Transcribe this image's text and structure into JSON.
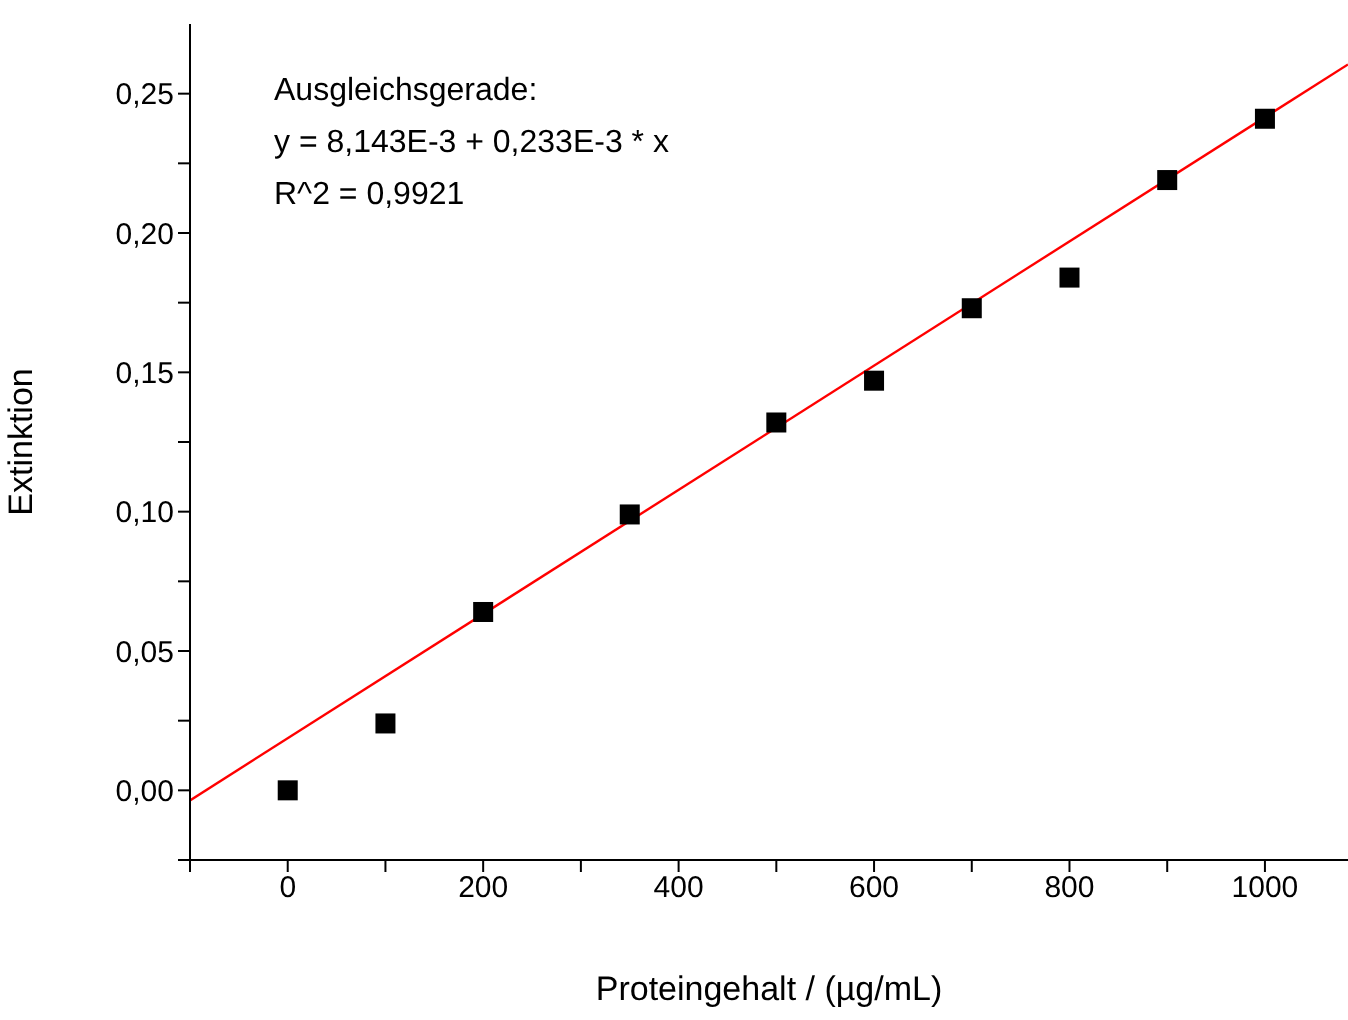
{
  "chart_data": {
    "type": "scatter",
    "xlabel": "Proteingehalt / (µg/mL)",
    "ylabel": "Extinktion",
    "annotations": [
      "Ausgleichsgerade:",
      "y = 8,143E-3 + 0,233E-3 * x",
      "R^2 = 0,9921"
    ],
    "x": [
      0,
      100,
      200,
      350,
      500,
      600,
      700,
      800,
      900,
      1000
    ],
    "series": [
      {
        "color": "#000000",
        "marker": "square",
        "values": [
          0.0,
          0.024,
          0.064,
          0.099,
          0.132,
          0.147,
          0.173,
          0.184,
          0.219,
          0.241
        ]
      },
      {
        "type": "line",
        "color": "#ff0000",
        "marker": "none",
        "line_style": "solid",
        "x": [
          -100,
          1085
        ],
        "values": [
          -0.0036,
          0.2605
        ]
      }
    ],
    "xlim": [
      -100,
      1085
    ],
    "ylim": [
      -0.025,
      0.275
    ],
    "xticks": [
      {
        "value": -100,
        "label": null
      },
      0,
      {
        "value": 100,
        "label": null
      },
      200,
      {
        "value": 300,
        "label": null
      },
      400,
      {
        "value": 500,
        "label": null
      },
      600,
      {
        "value": 700,
        "label": null
      },
      800,
      {
        "value": 900,
        "label": null
      },
      1000
    ],
    "yticks": [
      {
        "value": -0.025,
        "label": null
      },
      {
        "value": 0,
        "label": "0,00"
      },
      {
        "value": 0.025,
        "label": null
      },
      {
        "value": 0.05,
        "label": "0,05"
      },
      {
        "value": 0.075,
        "label": null
      },
      {
        "value": 0.1,
        "label": "0,10"
      },
      {
        "value": 0.125,
        "label": null
      },
      {
        "value": 0.15,
        "label": "0,15"
      },
      {
        "value": 0.175,
        "label": null
      },
      {
        "value": 0.2,
        "label": "0,20"
      },
      {
        "value": 0.225,
        "label": null
      },
      {
        "value": 0.25,
        "label": "0,25"
      }
    ],
    "grid": false,
    "legend": false
  }
}
